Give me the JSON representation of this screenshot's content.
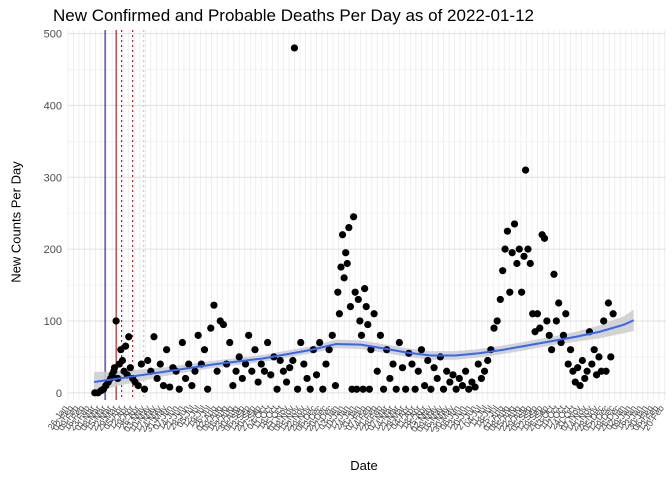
{
  "chart_data": {
    "type": "scatter",
    "title": "New Confirmed and Probable Deaths Per Day as of 2022-01-12",
    "xlabel": "Date",
    "ylabel": "New Counts Per Day",
    "ylim": [
      -10,
      505
    ],
    "y_ticks": [
      0,
      100,
      200,
      300,
      400,
      500
    ],
    "x_range": [
      "2020-01-26",
      "2022-02-22"
    ],
    "grid": true,
    "x_tick_labels_illegible": true,
    "reference_lines": [
      {
        "date": "2020-03-13",
        "color": "#00008b",
        "style": "solid"
      },
      {
        "date": "2020-03-27",
        "color": "#8b0000",
        "style": "solid"
      },
      {
        "date": "2020-04-03",
        "color": "#8b0000",
        "style": "dotted"
      },
      {
        "date": "2020-04-17",
        "color": "#8b0000",
        "style": "dotted"
      },
      {
        "date": "2020-05-01",
        "color": "#bbbbbb",
        "style": "dotted"
      }
    ],
    "smooth": {
      "color": "#3366ff",
      "band_color": "#cccccc",
      "points": [
        [
          "2020-02-28",
          15
        ],
        [
          "2020-03-31",
          20
        ],
        [
          "2020-05-31",
          30
        ],
        [
          "2020-07-31",
          40
        ],
        [
          "2020-09-30",
          48
        ],
        [
          "2020-11-30",
          60
        ],
        [
          "2020-12-31",
          68
        ],
        [
          "2021-01-31",
          67
        ],
        [
          "2021-02-28",
          62
        ],
        [
          "2021-03-31",
          56
        ],
        [
          "2021-04-30",
          52
        ],
        [
          "2021-05-31",
          52
        ],
        [
          "2021-06-30",
          55
        ],
        [
          "2021-07-31",
          60
        ],
        [
          "2021-08-31",
          66
        ],
        [
          "2021-09-30",
          72
        ],
        [
          "2021-10-31",
          78
        ],
        [
          "2021-11-30",
          85
        ],
        [
          "2021-12-31",
          95
        ],
        [
          "2022-01-12",
          101
        ]
      ],
      "band_halfwidth": [
        14,
        10,
        6,
        5,
        5,
        5,
        6,
        6,
        6,
        6,
        6,
        6,
        6,
        6,
        6,
        6,
        7,
        9,
        12,
        15
      ]
    },
    "series": [
      {
        "points": [
          [
            "2020-02-29",
            0
          ],
          [
            "2020-03-04",
            0
          ],
          [
            "2020-03-08",
            3
          ],
          [
            "2020-03-11",
            5
          ],
          [
            "2020-03-14",
            10
          ],
          [
            "2020-03-17",
            15
          ],
          [
            "2020-03-20",
            20
          ],
          [
            "2020-03-22",
            25
          ],
          [
            "2020-03-24",
            30
          ],
          [
            "2020-03-25",
            35
          ],
          [
            "2020-03-27",
            100
          ],
          [
            "2020-03-29",
            20
          ],
          [
            "2020-03-31",
            40
          ],
          [
            "2020-04-02",
            60
          ],
          [
            "2020-04-04",
            45
          ],
          [
            "2020-04-06",
            30
          ],
          [
            "2020-04-08",
            65
          ],
          [
            "2020-04-10",
            25
          ],
          [
            "2020-04-12",
            78
          ],
          [
            "2020-04-14",
            35
          ],
          [
            "2020-04-17",
            20
          ],
          [
            "2020-04-20",
            15
          ],
          [
            "2020-04-24",
            10
          ],
          [
            "2020-04-28",
            40
          ],
          [
            "2020-05-02",
            5
          ],
          [
            "2020-05-06",
            45
          ],
          [
            "2020-05-10",
            30
          ],
          [
            "2020-05-14",
            78
          ],
          [
            "2020-05-18",
            20
          ],
          [
            "2020-05-22",
            40
          ],
          [
            "2020-05-26",
            10
          ],
          [
            "2020-05-30",
            60
          ],
          [
            "2020-06-03",
            8
          ],
          [
            "2020-06-07",
            35
          ],
          [
            "2020-06-11",
            30
          ],
          [
            "2020-06-15",
            5
          ],
          [
            "2020-06-19",
            70
          ],
          [
            "2020-06-23",
            20
          ],
          [
            "2020-06-27",
            40
          ],
          [
            "2020-07-01",
            10
          ],
          [
            "2020-07-05",
            30
          ],
          [
            "2020-07-09",
            80
          ],
          [
            "2020-07-13",
            40
          ],
          [
            "2020-07-17",
            60
          ],
          [
            "2020-07-21",
            5
          ],
          [
            "2020-07-25",
            90
          ],
          [
            "2020-07-29",
            122
          ],
          [
            "2020-08-02",
            30
          ],
          [
            "2020-08-06",
            100
          ],
          [
            "2020-08-10",
            95
          ],
          [
            "2020-08-14",
            40
          ],
          [
            "2020-08-18",
            70
          ],
          [
            "2020-08-22",
            10
          ],
          [
            "2020-08-26",
            30
          ],
          [
            "2020-08-30",
            50
          ],
          [
            "2020-09-03",
            20
          ],
          [
            "2020-09-07",
            40
          ],
          [
            "2020-09-11",
            80
          ],
          [
            "2020-09-15",
            30
          ],
          [
            "2020-09-19",
            60
          ],
          [
            "2020-09-23",
            15
          ],
          [
            "2020-09-27",
            40
          ],
          [
            "2020-10-01",
            30
          ],
          [
            "2020-10-05",
            70
          ],
          [
            "2020-10-09",
            25
          ],
          [
            "2020-10-13",
            50
          ],
          [
            "2020-10-17",
            5
          ],
          [
            "2020-10-21",
            45
          ],
          [
            "2020-10-25",
            30
          ],
          [
            "2020-10-29",
            15
          ],
          [
            "2020-11-02",
            35
          ],
          [
            "2020-11-06",
            45
          ],
          [
            "2020-11-08",
            480
          ],
          [
            "2020-11-12",
            5
          ],
          [
            "2020-11-16",
            70
          ],
          [
            "2020-11-20",
            40
          ],
          [
            "2020-11-24",
            20
          ],
          [
            "2020-11-28",
            5
          ],
          [
            "2020-12-02",
            60
          ],
          [
            "2020-12-06",
            25
          ],
          [
            "2020-12-10",
            70
          ],
          [
            "2020-12-14",
            5
          ],
          [
            "2020-12-18",
            40
          ],
          [
            "2020-12-22",
            60
          ],
          [
            "2020-12-26",
            80
          ],
          [
            "2020-12-30",
            10
          ],
          [
            "2021-01-02",
            140
          ],
          [
            "2021-01-04",
            110
          ],
          [
            "2021-01-06",
            175
          ],
          [
            "2021-01-08",
            220
          ],
          [
            "2021-01-10",
            160
          ],
          [
            "2021-01-12",
            195
          ],
          [
            "2021-01-14",
            180
          ],
          [
            "2021-01-16",
            230
          ],
          [
            "2021-01-18",
            120
          ],
          [
            "2021-01-20",
            5
          ],
          [
            "2021-01-22",
            245
          ],
          [
            "2021-01-24",
            140
          ],
          [
            "2021-01-26",
            5
          ],
          [
            "2021-01-28",
            130
          ],
          [
            "2021-01-30",
            100
          ],
          [
            "2021-02-01",
            80
          ],
          [
            "2021-02-03",
            5
          ],
          [
            "2021-02-05",
            145
          ],
          [
            "2021-02-07",
            120
          ],
          [
            "2021-02-09",
            95
          ],
          [
            "2021-02-11",
            5
          ],
          [
            "2021-02-13",
            60
          ],
          [
            "2021-02-17",
            110
          ],
          [
            "2021-02-21",
            30
          ],
          [
            "2021-02-25",
            80
          ],
          [
            "2021-03-01",
            5
          ],
          [
            "2021-03-05",
            60
          ],
          [
            "2021-03-09",
            20
          ],
          [
            "2021-03-13",
            40
          ],
          [
            "2021-03-17",
            5
          ],
          [
            "2021-03-21",
            70
          ],
          [
            "2021-03-25",
            35
          ],
          [
            "2021-03-29",
            5
          ],
          [
            "2021-04-02",
            55
          ],
          [
            "2021-04-06",
            40
          ],
          [
            "2021-04-10",
            5
          ],
          [
            "2021-04-14",
            30
          ],
          [
            "2021-04-18",
            60
          ],
          [
            "2021-04-22",
            10
          ],
          [
            "2021-04-26",
            45
          ],
          [
            "2021-04-30",
            5
          ],
          [
            "2021-05-04",
            35
          ],
          [
            "2021-05-08",
            20
          ],
          [
            "2021-05-12",
            50
          ],
          [
            "2021-05-16",
            5
          ],
          [
            "2021-05-20",
            30
          ],
          [
            "2021-05-24",
            15
          ],
          [
            "2021-05-28",
            25
          ],
          [
            "2021-06-01",
            5
          ],
          [
            "2021-06-05",
            20
          ],
          [
            "2021-06-09",
            10
          ],
          [
            "2021-06-13",
            30
          ],
          [
            "2021-06-17",
            5
          ],
          [
            "2021-06-21",
            15
          ],
          [
            "2021-06-25",
            8
          ],
          [
            "2021-06-29",
            40
          ],
          [
            "2021-07-03",
            20
          ],
          [
            "2021-07-07",
            30
          ],
          [
            "2021-07-11",
            45
          ],
          [
            "2021-07-15",
            60
          ],
          [
            "2021-07-19",
            90
          ],
          [
            "2021-07-23",
            100
          ],
          [
            "2021-07-27",
            130
          ],
          [
            "2021-07-30",
            170
          ],
          [
            "2021-08-02",
            200
          ],
          [
            "2021-08-05",
            225
          ],
          [
            "2021-08-08",
            140
          ],
          [
            "2021-08-11",
            195
          ],
          [
            "2021-08-14",
            235
          ],
          [
            "2021-08-17",
            180
          ],
          [
            "2021-08-20",
            200
          ],
          [
            "2021-08-23",
            140
          ],
          [
            "2021-08-26",
            190
          ],
          [
            "2021-08-28",
            310
          ],
          [
            "2021-08-31",
            200
          ],
          [
            "2021-09-03",
            180
          ],
          [
            "2021-09-06",
            110
          ],
          [
            "2021-09-09",
            85
          ],
          [
            "2021-09-12",
            110
          ],
          [
            "2021-09-15",
            90
          ],
          [
            "2021-09-18",
            220
          ],
          [
            "2021-09-21",
            215
          ],
          [
            "2021-09-24",
            100
          ],
          [
            "2021-09-27",
            80
          ],
          [
            "2021-09-30",
            60
          ],
          [
            "2021-10-03",
            165
          ],
          [
            "2021-10-06",
            100
          ],
          [
            "2021-10-09",
            125
          ],
          [
            "2021-10-12",
            70
          ],
          [
            "2021-10-15",
            80
          ],
          [
            "2021-10-18",
            110
          ],
          [
            "2021-10-21",
            40
          ],
          [
            "2021-10-24",
            60
          ],
          [
            "2021-10-27",
            30
          ],
          [
            "2021-10-30",
            15
          ],
          [
            "2021-11-02",
            35
          ],
          [
            "2021-11-05",
            10
          ],
          [
            "2021-11-08",
            45
          ],
          [
            "2021-11-11",
            20
          ],
          [
            "2021-11-14",
            30
          ],
          [
            "2021-11-17",
            85
          ],
          [
            "2021-11-20",
            40
          ],
          [
            "2021-11-23",
            60
          ],
          [
            "2021-11-26",
            25
          ],
          [
            "2021-11-29",
            50
          ],
          [
            "2021-12-02",
            30
          ],
          [
            "2021-12-05",
            100
          ],
          [
            "2021-12-08",
            30
          ],
          [
            "2021-12-11",
            125
          ],
          [
            "2021-12-14",
            50
          ],
          [
            "2021-12-17",
            110
          ]
        ]
      }
    ]
  }
}
